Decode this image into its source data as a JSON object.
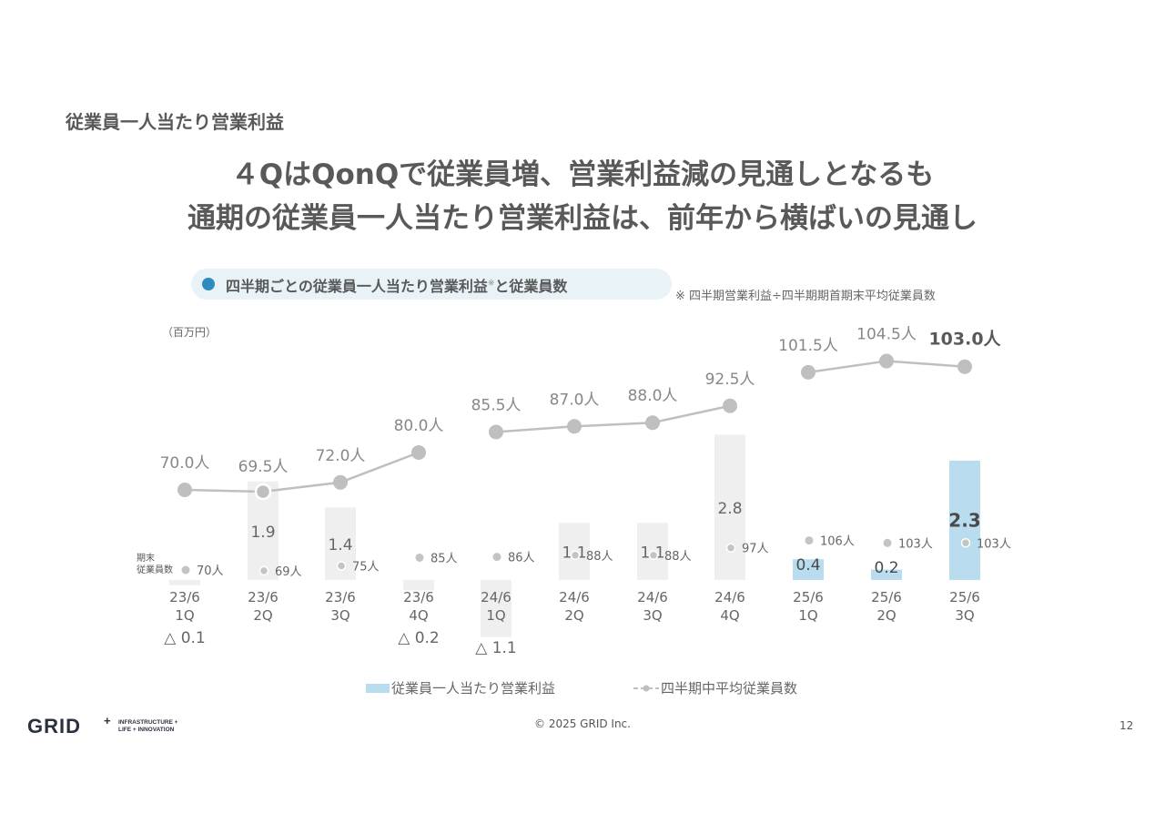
{
  "section_title": "従業員一人当たり営業利益",
  "headline": {
    "line1": "４QはQonQで従業員増、営業利益減の見通しとなるも",
    "line2": "通期の従業員一人当たり営業利益は、前年から横ばいの見通し"
  },
  "pill": {
    "label": "四半期ごとの従業員一人当たり営業利益",
    "mark": "※",
    "label_tail": "と従業員数"
  },
  "footnote": "※ 四半期営業利益÷四半期期首期末平均従業員数",
  "logo": {
    "text": "GRID",
    "plus": "+",
    "tag1": "INFRASTRUCTURE +",
    "tag2": "LIFE + INNOVATION"
  },
  "footer": {
    "copyright": "© 2025 GRID Inc.",
    "page_number": "12"
  },
  "colors": {
    "highlight_bar": "#b9ddef",
    "bar": "#efefef",
    "line": "#bfbfbf",
    "text": "#595959"
  },
  "chart_data": {
    "type": "bar",
    "unit": "（百万円）",
    "categories": [
      [
        "23/6",
        "1Q"
      ],
      [
        "23/6",
        "2Q"
      ],
      [
        "23/6",
        "3Q"
      ],
      [
        "23/6",
        "4Q"
      ],
      [
        "24/6",
        "1Q"
      ],
      [
        "24/6",
        "2Q"
      ],
      [
        "24/6",
        "3Q"
      ],
      [
        "24/6",
        "4Q"
      ],
      [
        "25/6",
        "1Q"
      ],
      [
        "25/6",
        "2Q"
      ],
      [
        "25/6",
        "3Q"
      ]
    ],
    "bars": {
      "name": "従業員一人当たり営業利益",
      "values": [
        -0.1,
        1.9,
        1.4,
        -0.2,
        -1.1,
        1.1,
        1.1,
        2.8,
        0.4,
        0.2,
        2.3
      ],
      "labels": [
        "△ 0.1",
        "1.9",
        "1.4",
        "△ 0.2",
        "△ 1.1",
        "1.1",
        "1.1",
        "2.8",
        "0.4",
        "0.2",
        "2.3"
      ],
      "highlighted": [
        false,
        false,
        false,
        false,
        false,
        false,
        false,
        false,
        true,
        true,
        true
      ]
    },
    "avg_employees": {
      "name": "四半期中平均従業員数",
      "values": [
        70.0,
        69.5,
        72.0,
        80.0,
        85.5,
        87.0,
        88.0,
        92.5,
        101.5,
        104.5,
        103.0
      ],
      "labels": [
        "70.0人",
        "69.5人",
        "72.0人",
        "80.0人",
        "85.5人",
        "87.0人",
        "88.0人",
        "92.5人",
        "101.5人",
        "104.5人",
        "103.0人"
      ]
    },
    "end_employees": {
      "row_label_1": "期末",
      "row_label_2": "従業員数",
      "values": [
        70,
        69,
        75,
        85,
        86,
        88,
        88,
        97,
        106,
        103,
        103
      ],
      "labels": [
        "70人",
        "69人",
        "75人",
        "85人",
        "86人",
        "88人",
        "88人",
        "97人",
        "106人",
        "103人",
        "103人"
      ]
    },
    "legend": {
      "bar_label": "従業員一人当たり営業利益",
      "line_label": "四半期中平均従業員数"
    }
  }
}
